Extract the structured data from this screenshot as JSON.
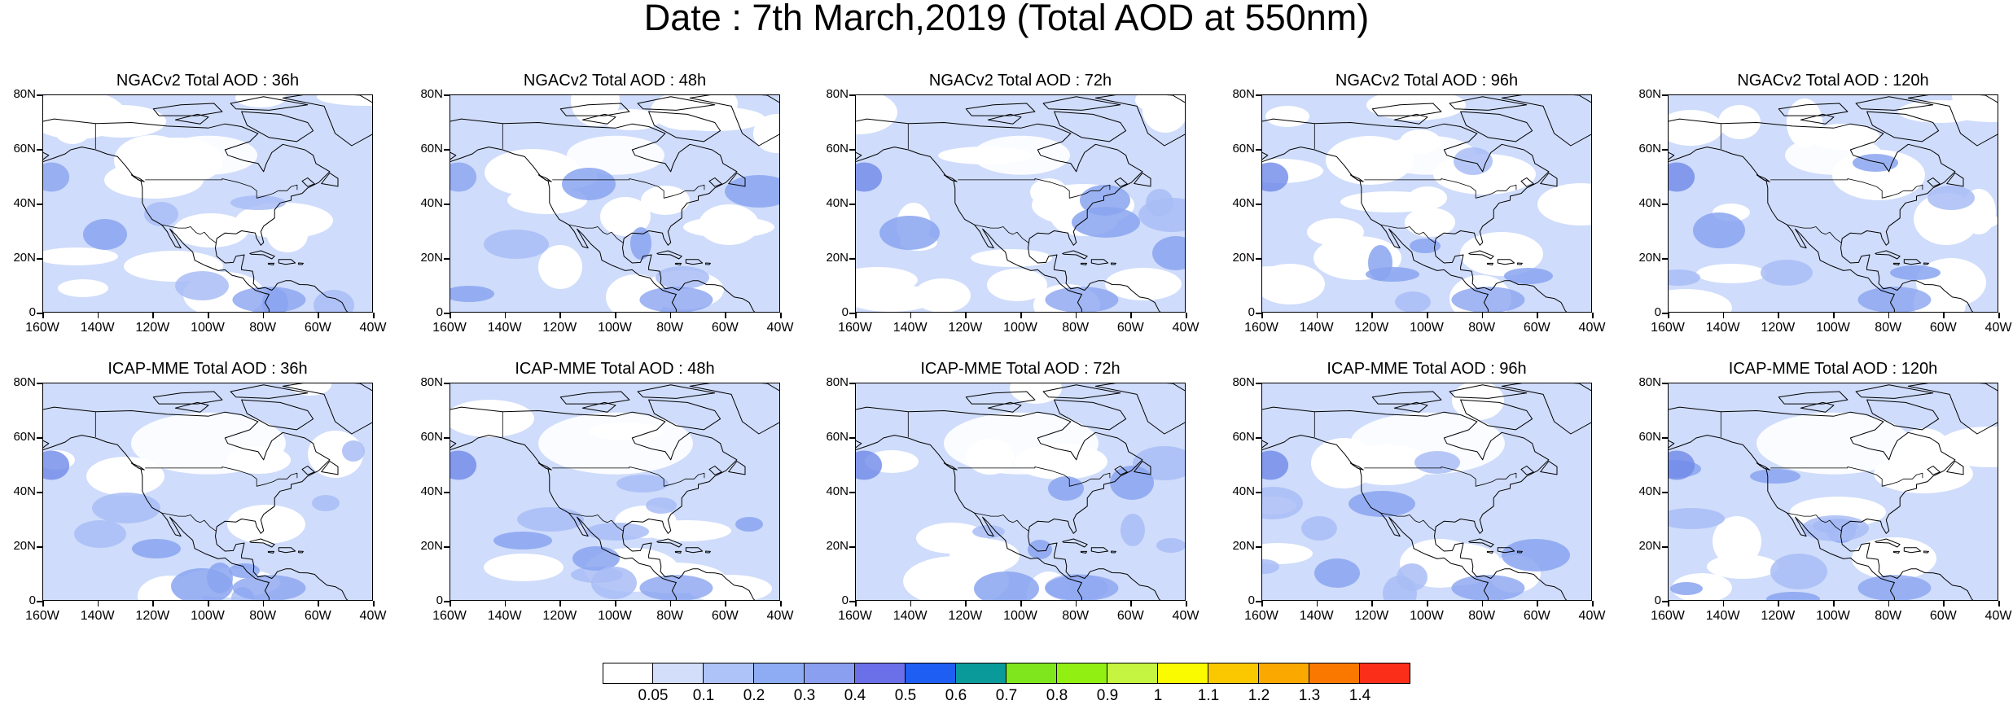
{
  "title": "Date : 7th March,2019 (Total AOD at 550nm)",
  "colors": {
    "base": "#cfdcfb",
    "clear": "#ffffff",
    "medium": "#a9bdf6",
    "strong": "#8aa4f0",
    "stronger": "#6f8ae8",
    "coast": "#000000"
  },
  "panels": [
    {
      "row": 0,
      "col": 0,
      "title": "NGACv2 Total AOD : 36h"
    },
    {
      "row": 0,
      "col": 1,
      "title": "NGACv2 Total AOD : 48h"
    },
    {
      "row": 0,
      "col": 2,
      "title": "NGACv2 Total AOD : 72h"
    },
    {
      "row": 0,
      "col": 3,
      "title": "NGACv2 Total AOD : 96h"
    },
    {
      "row": 0,
      "col": 4,
      "title": "NGACv2 Total AOD : 120h"
    },
    {
      "row": 1,
      "col": 0,
      "title": "ICAP-MME Total AOD : 36h"
    },
    {
      "row": 1,
      "col": 1,
      "title": "ICAP-MME Total AOD : 48h"
    },
    {
      "row": 1,
      "col": 2,
      "title": "ICAP-MME Total AOD : 72h"
    },
    {
      "row": 1,
      "col": 3,
      "title": "ICAP-MME Total AOD : 96h"
    },
    {
      "row": 1,
      "col": 4,
      "title": "ICAP-MME Total AOD : 120h"
    }
  ],
  "lat_labels": [
    "80N",
    "60N",
    "40N",
    "20N",
    "0"
  ],
  "lon_labels": [
    "160W",
    "140W",
    "120W",
    "100W",
    "80W",
    "60W",
    "40W"
  ],
  "colorbar": {
    "colors": [
      "#ffffff",
      "#d3defb",
      "#aec3f7",
      "#8eacf3",
      "#8b9ff0",
      "#6b6fe8",
      "#1e5ef2",
      "#0a9a9a",
      "#7fe61e",
      "#92ef12",
      "#c5f540",
      "#fbfb00",
      "#fbc800",
      "#fba800",
      "#fb7800",
      "#fb2e1a"
    ],
    "labels": [
      "0.05",
      "0.1",
      "0.2",
      "0.3",
      "0.4",
      "0.5",
      "0.6",
      "0.7",
      "0.8",
      "0.9",
      "1",
      "1.1",
      "1.2",
      "1.3",
      "1.4"
    ]
  }
}
